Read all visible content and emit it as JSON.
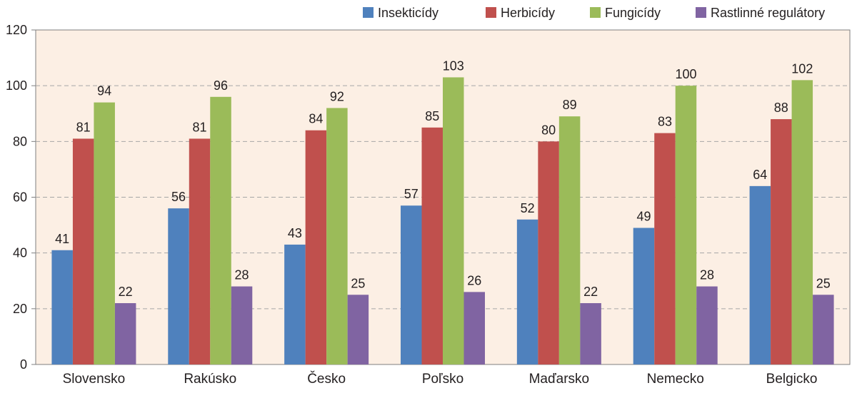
{
  "chart_data": {
    "type": "bar",
    "categories": [
      "Slovensko",
      "Rakúsko",
      "Česko",
      "Poľsko",
      "Maďarsko",
      "Nemecko",
      "Belgicko"
    ],
    "series": [
      {
        "name": "Insekticídy",
        "color": "#4f81bd",
        "values": [
          41,
          56,
          43,
          57,
          52,
          49,
          64
        ]
      },
      {
        "name": "Herbicídy",
        "color": "#c0504d",
        "values": [
          81,
          81,
          84,
          85,
          80,
          83,
          88
        ]
      },
      {
        "name": "Fungicídy",
        "color": "#9bbb59",
        "values": [
          94,
          96,
          92,
          103,
          89,
          100,
          102
        ]
      },
      {
        "name": "Rastlinné regulátory",
        "color": "#8064a2",
        "values": [
          22,
          28,
          25,
          26,
          22,
          28,
          25
        ]
      }
    ],
    "yticks": [
      "0",
      "20",
      "40",
      "60",
      "80",
      "100",
      "120"
    ],
    "ylim": [
      0,
      120
    ],
    "grid": true,
    "legend": "top-right",
    "title": "",
    "xlabel": "",
    "ylabel": ""
  },
  "colors": {
    "plot_background": "#fcefe4",
    "grid": "#a6a6a6",
    "axis": "#7f7f7f"
  }
}
